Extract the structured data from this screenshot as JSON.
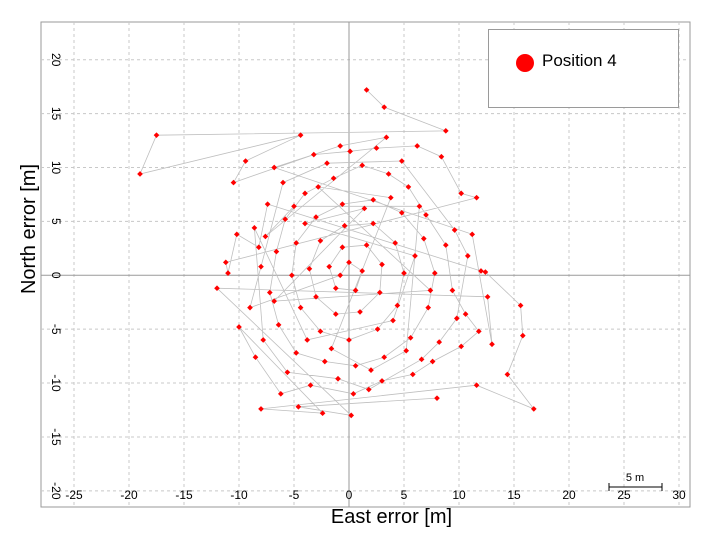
{
  "chart_data": {
    "type": "scatter",
    "xlabel": "East error [m]",
    "ylabel": "North error [m]",
    "xlim": [
      -28,
      31
    ],
    "ylim": [
      -21.5,
      23.5
    ],
    "x_ticks": [
      -25,
      -20,
      -15,
      -10,
      -5,
      0,
      5,
      10,
      15,
      20,
      25,
      30
    ],
    "y_ticks": [
      -20,
      -15,
      -10,
      -5,
      0,
      5,
      10,
      15,
      20
    ],
    "grid": true,
    "connected": true,
    "legend": {
      "position": "top-right"
    },
    "scale_bar": {
      "label": "5 m",
      "length": 5
    },
    "series": [
      {
        "name": "Position 4",
        "color": "#ff0000",
        "line_color": "#bfbfbf",
        "points": [
          [
            1.6,
            17.2
          ],
          [
            3.2,
            15.6
          ],
          [
            8.8,
            13.4
          ],
          [
            -17.5,
            13.0
          ],
          [
            -19.0,
            9.4
          ],
          [
            -4.4,
            13.0
          ],
          [
            -9.4,
            10.6
          ],
          [
            -10.5,
            8.6
          ],
          [
            -3.2,
            11.2
          ],
          [
            0.1,
            11.5
          ],
          [
            2.5,
            11.8
          ],
          [
            6.2,
            12.0
          ],
          [
            8.4,
            11.0
          ],
          [
            10.2,
            7.6
          ],
          [
            11.6,
            7.2
          ],
          [
            -11.2,
            1.2
          ],
          [
            -11.0,
            0.2
          ],
          [
            -10.2,
            3.8
          ],
          [
            -8.2,
            2.6
          ],
          [
            -7.4,
            6.6
          ],
          [
            12.0,
            0.4
          ],
          [
            12.4,
            0.3
          ],
          [
            15.6,
            -2.8
          ],
          [
            15.8,
            -5.6
          ],
          [
            14.4,
            -9.2
          ],
          [
            16.8,
            -12.4
          ],
          [
            11.6,
            -10.2
          ],
          [
            -8.0,
            -12.4
          ],
          [
            -2.4,
            -12.8
          ],
          [
            -10.0,
            -4.8
          ],
          [
            -8.5,
            -7.6
          ],
          [
            -6.2,
            -11.0
          ],
          [
            -3.5,
            -10.2
          ],
          [
            0.4,
            -11.0
          ],
          [
            3.0,
            -9.8
          ],
          [
            5.8,
            -9.2
          ],
          [
            7.6,
            -8.0
          ],
          [
            10.2,
            -6.6
          ],
          [
            11.8,
            -5.2
          ],
          [
            10.6,
            -3.6
          ],
          [
            9.4,
            -1.4
          ],
          [
            8.8,
            2.8
          ],
          [
            7.0,
            5.6
          ],
          [
            5.4,
            8.2
          ],
          [
            3.6,
            9.4
          ],
          [
            1.2,
            10.2
          ],
          [
            -1.4,
            9.0
          ],
          [
            -4.0,
            7.6
          ],
          [
            -5.8,
            5.2
          ],
          [
            -6.6,
            2.2
          ],
          [
            -7.2,
            -1.6
          ],
          [
            -6.4,
            -4.6
          ],
          [
            -4.8,
            -7.2
          ],
          [
            -2.2,
            -8.0
          ],
          [
            0.6,
            -8.4
          ],
          [
            3.2,
            -7.6
          ],
          [
            5.6,
            -5.8
          ],
          [
            7.2,
            -3.0
          ],
          [
            7.8,
            0.2
          ],
          [
            6.8,
            3.4
          ],
          [
            4.8,
            5.8
          ],
          [
            2.2,
            7.0
          ],
          [
            -0.6,
            6.6
          ],
          [
            -3.0,
            5.4
          ],
          [
            -4.8,
            3.0
          ],
          [
            -5.2,
            0.0
          ],
          [
            -4.4,
            -3.0
          ],
          [
            -2.6,
            -5.2
          ],
          [
            0.0,
            -6.0
          ],
          [
            2.6,
            -5.0
          ],
          [
            4.4,
            -2.8
          ],
          [
            5.0,
            0.2
          ],
          [
            4.2,
            3.0
          ],
          [
            2.2,
            4.8
          ],
          [
            -0.4,
            4.6
          ],
          [
            -2.6,
            3.2
          ],
          [
            -3.6,
            0.6
          ],
          [
            -3.0,
            -2.0
          ],
          [
            -1.2,
            -3.6
          ],
          [
            1.0,
            -3.4
          ],
          [
            2.8,
            -1.6
          ],
          [
            3.0,
            1.0
          ],
          [
            1.6,
            2.8
          ],
          [
            -0.6,
            2.6
          ],
          [
            -1.8,
            0.8
          ],
          [
            -1.2,
            -1.2
          ],
          [
            0.6,
            -1.4
          ],
          [
            1.2,
            0.4
          ],
          [
            0.0,
            1.2
          ],
          [
            -0.8,
            0.0
          ],
          [
            -9.0,
            -3.0
          ],
          [
            -8.0,
            0.8
          ],
          [
            -6.0,
            8.6
          ],
          [
            -2.0,
            10.4
          ],
          [
            4.8,
            10.6
          ],
          [
            9.6,
            4.2
          ],
          [
            10.8,
            1.8
          ],
          [
            9.8,
            -4.0
          ],
          [
            8.2,
            -6.2
          ],
          [
            6.6,
            -7.8
          ],
          [
            1.8,
            -10.6
          ],
          [
            -1.0,
            -9.6
          ],
          [
            -5.6,
            -9.0
          ],
          [
            -7.8,
            -6.0
          ],
          [
            -8.6,
            4.4
          ],
          [
            -3.8,
            -6.0
          ],
          [
            4.0,
            -4.2
          ],
          [
            6.0,
            1.8
          ],
          [
            -4.0,
            4.8
          ],
          [
            1.4,
            6.2
          ],
          [
            -6.8,
            -2.4
          ],
          [
            7.4,
            -1.4
          ],
          [
            -2.8,
            8.2
          ],
          [
            3.8,
            7.2
          ],
          [
            -1.6,
            -6.8
          ],
          [
            2.0,
            -8.8
          ],
          [
            5.2,
            -7.0
          ],
          [
            6.4,
            6.4
          ],
          [
            -5.0,
            6.4
          ],
          [
            -7.6,
            3.6
          ],
          [
            3.4,
            12.8
          ],
          [
            -0.8,
            12.0
          ],
          [
            -6.8,
            10.0
          ],
          [
            11.2,
            3.8
          ],
          [
            13.0,
            -6.4
          ],
          [
            12.6,
            -2.0
          ],
          [
            -12.0,
            -1.2
          ],
          [
            0.2,
            -13.0
          ],
          [
            -4.6,
            -12.2
          ],
          [
            8.0,
            -11.4
          ]
        ]
      }
    ]
  }
}
